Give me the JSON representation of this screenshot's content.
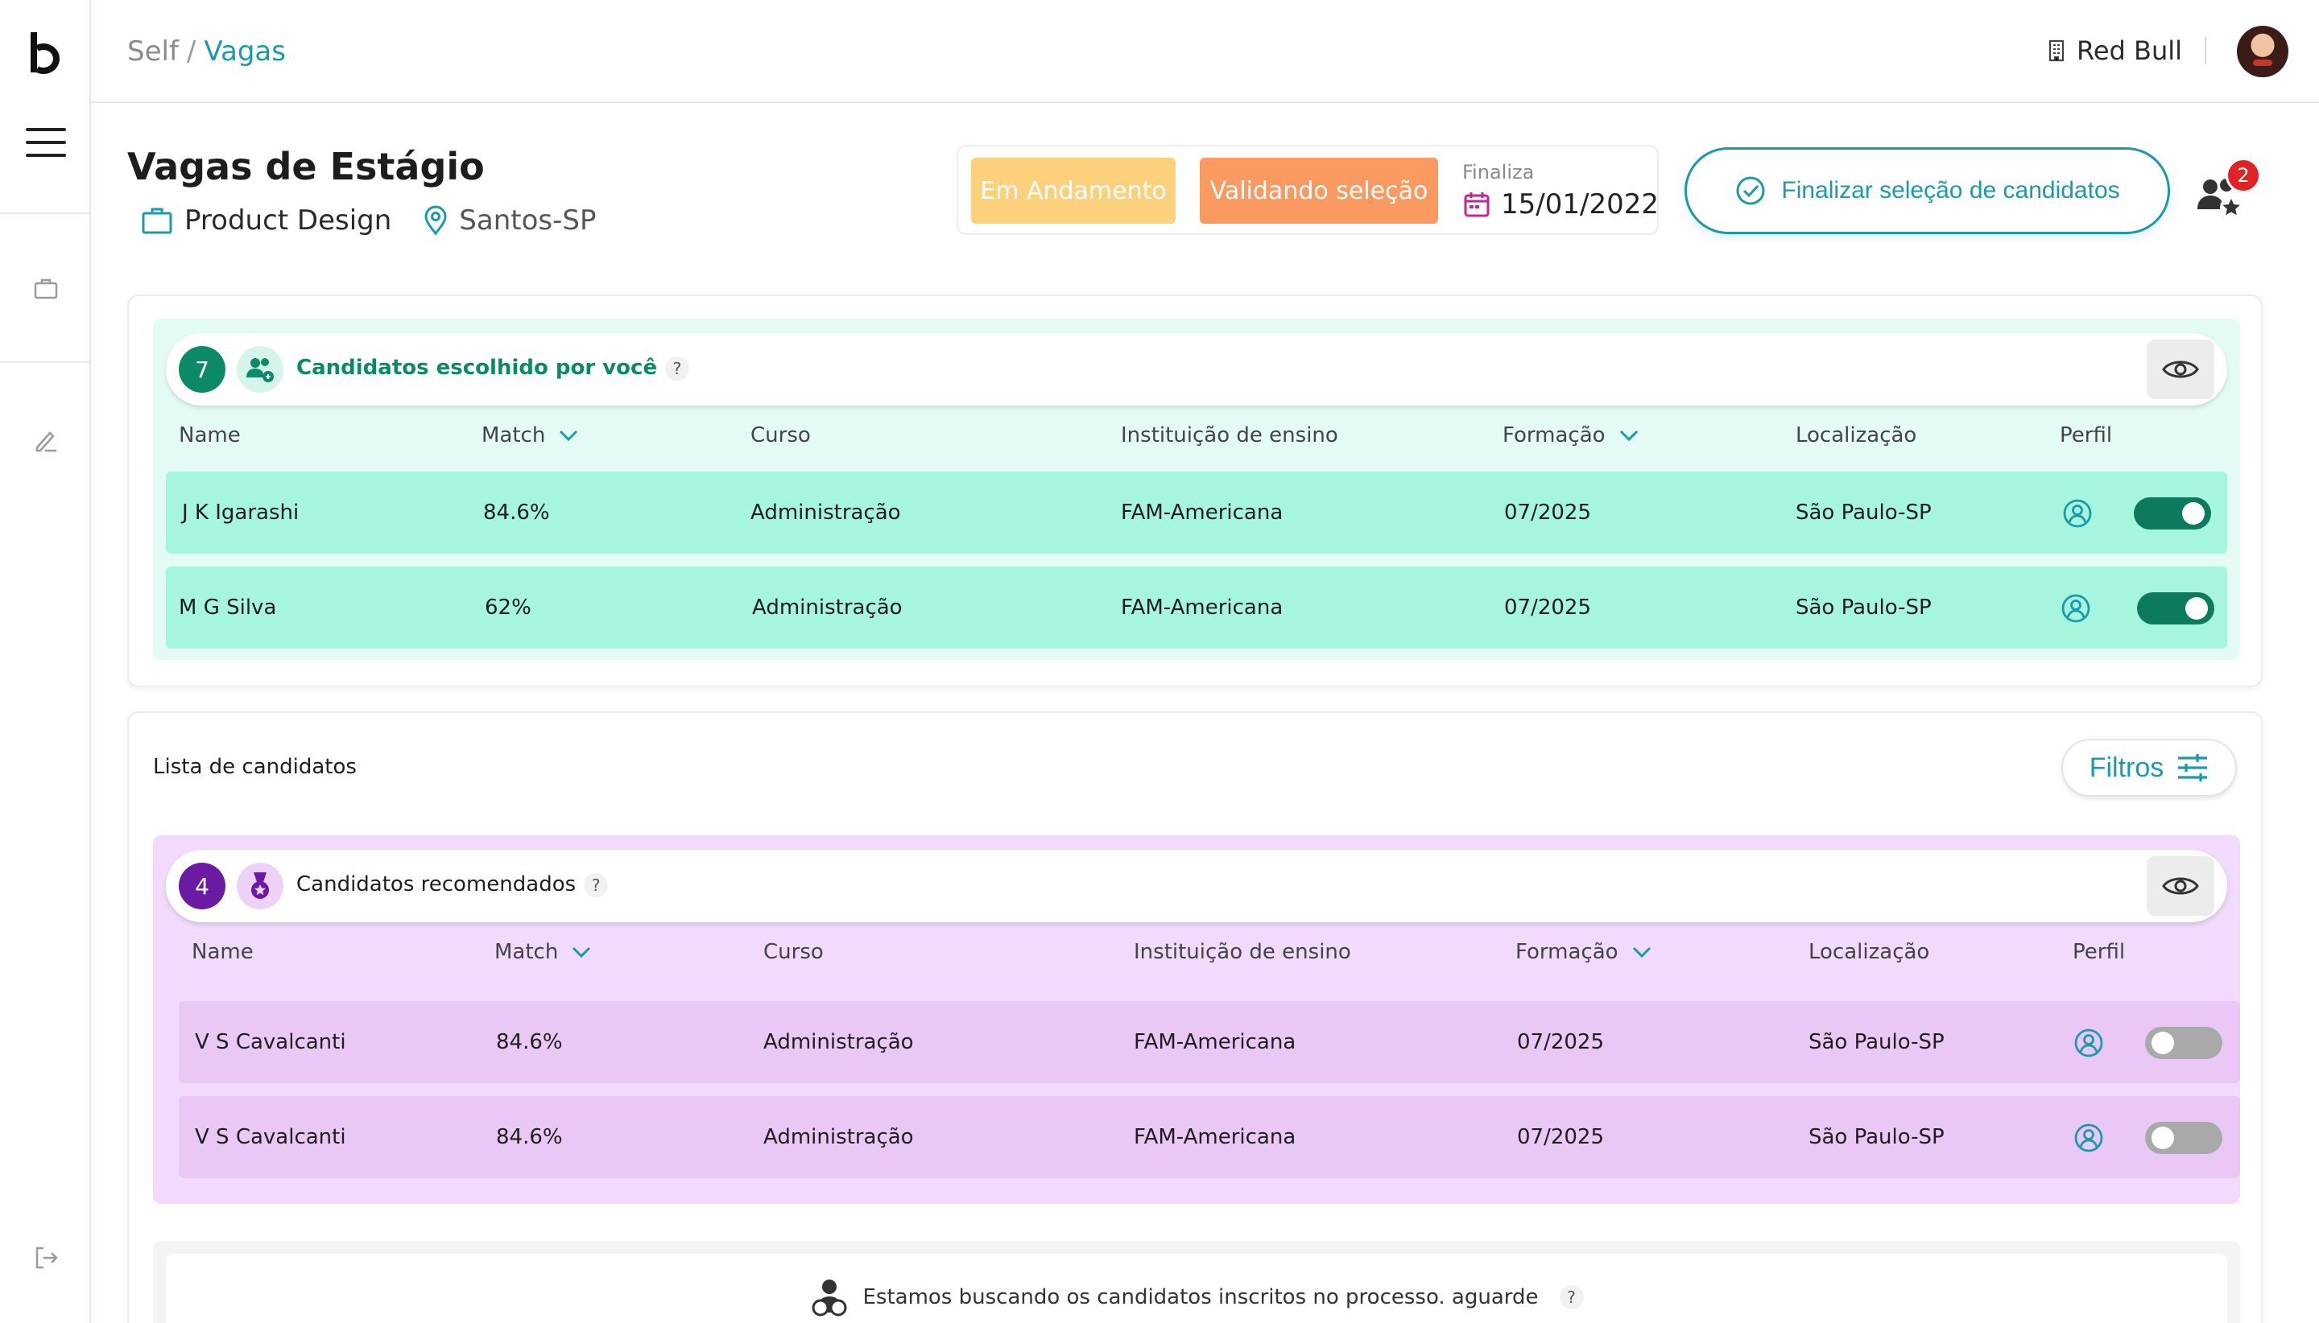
{
  "breadcrumb": {
    "root": "Self",
    "separator": "/",
    "current": "Vagas"
  },
  "company": {
    "name": "Red Bull"
  },
  "job": {
    "title": "Vagas de Estágio",
    "area": "Product Design",
    "location": "Santos-SP"
  },
  "status": {
    "in_progress": "Em Andamento",
    "validating": "Validando seleção",
    "finaliza_label": "Finaliza",
    "finaliza_date": "15/01/2022"
  },
  "actions": {
    "finalize_label": "Finalizar seleção de candidatos",
    "notifications_count": "2"
  },
  "columns": {
    "name": "Name",
    "match": "Match",
    "curso": "Curso",
    "instituicao": "Instituição de ensino",
    "formacao": "Formação",
    "localizacao": "Localização",
    "perfil": "Perfil"
  },
  "chosen": {
    "count": "7",
    "title": "Candidatos escolhido por você",
    "help": "?",
    "rows": [
      {
        "name": "J K Igarashi",
        "match": "84.6%",
        "curso": "Administração",
        "instituicao": "FAM-Americana",
        "formacao": "07/2025",
        "localizacao": "São Paulo-SP",
        "selected": true
      },
      {
        "name": "M G Silva",
        "match": "62%",
        "curso": "Administração",
        "instituicao": "FAM-Americana",
        "formacao": "07/2025",
        "localizacao": "São Paulo-SP",
        "selected": true
      }
    ]
  },
  "list": {
    "title": "Lista de candidatos",
    "filter_label": "Filtros"
  },
  "recommended": {
    "count": "4",
    "title": "Candidatos recomendados",
    "help": "?",
    "rows": [
      {
        "name": "V S Cavalcanti",
        "match": "84.6%",
        "curso": "Administração",
        "instituicao": "FAM-Americana",
        "formacao": "07/2025",
        "localizacao": "São Paulo-SP",
        "selected": false
      },
      {
        "name": "V S Cavalcanti",
        "match": "84.6%",
        "curso": "Administração",
        "instituicao": "FAM-Americana",
        "formacao": "07/2025",
        "localizacao": "São Paulo-SP",
        "selected": false
      }
    ]
  },
  "loading": {
    "message": "Estamos buscando os candidatos inscritos no processo. aguarde",
    "help": "?"
  },
  "colors": {
    "accent": "#1a9aaa",
    "green_panel": "#e3fbf4",
    "green_row": "#a6f5de",
    "purple_panel": "#f1dafb",
    "purple_row": "#eac8f6",
    "toggle_on": "#0c7a5c",
    "badge_progress": "#fdd07c",
    "badge_validating": "#fb9a60",
    "notif": "#e02424"
  },
  "icons": [
    "logo-b",
    "menu-icon",
    "briefcase-icon",
    "edit-icon",
    "logout-icon",
    "building-icon",
    "location-pin-icon",
    "calendar-icon",
    "check-circle-icon",
    "group-star-icon",
    "group-icon",
    "eye-icon",
    "medal-icon",
    "user-circle-icon",
    "chevron-down-icon",
    "filter-sliders-icon",
    "users-search-icon"
  ]
}
